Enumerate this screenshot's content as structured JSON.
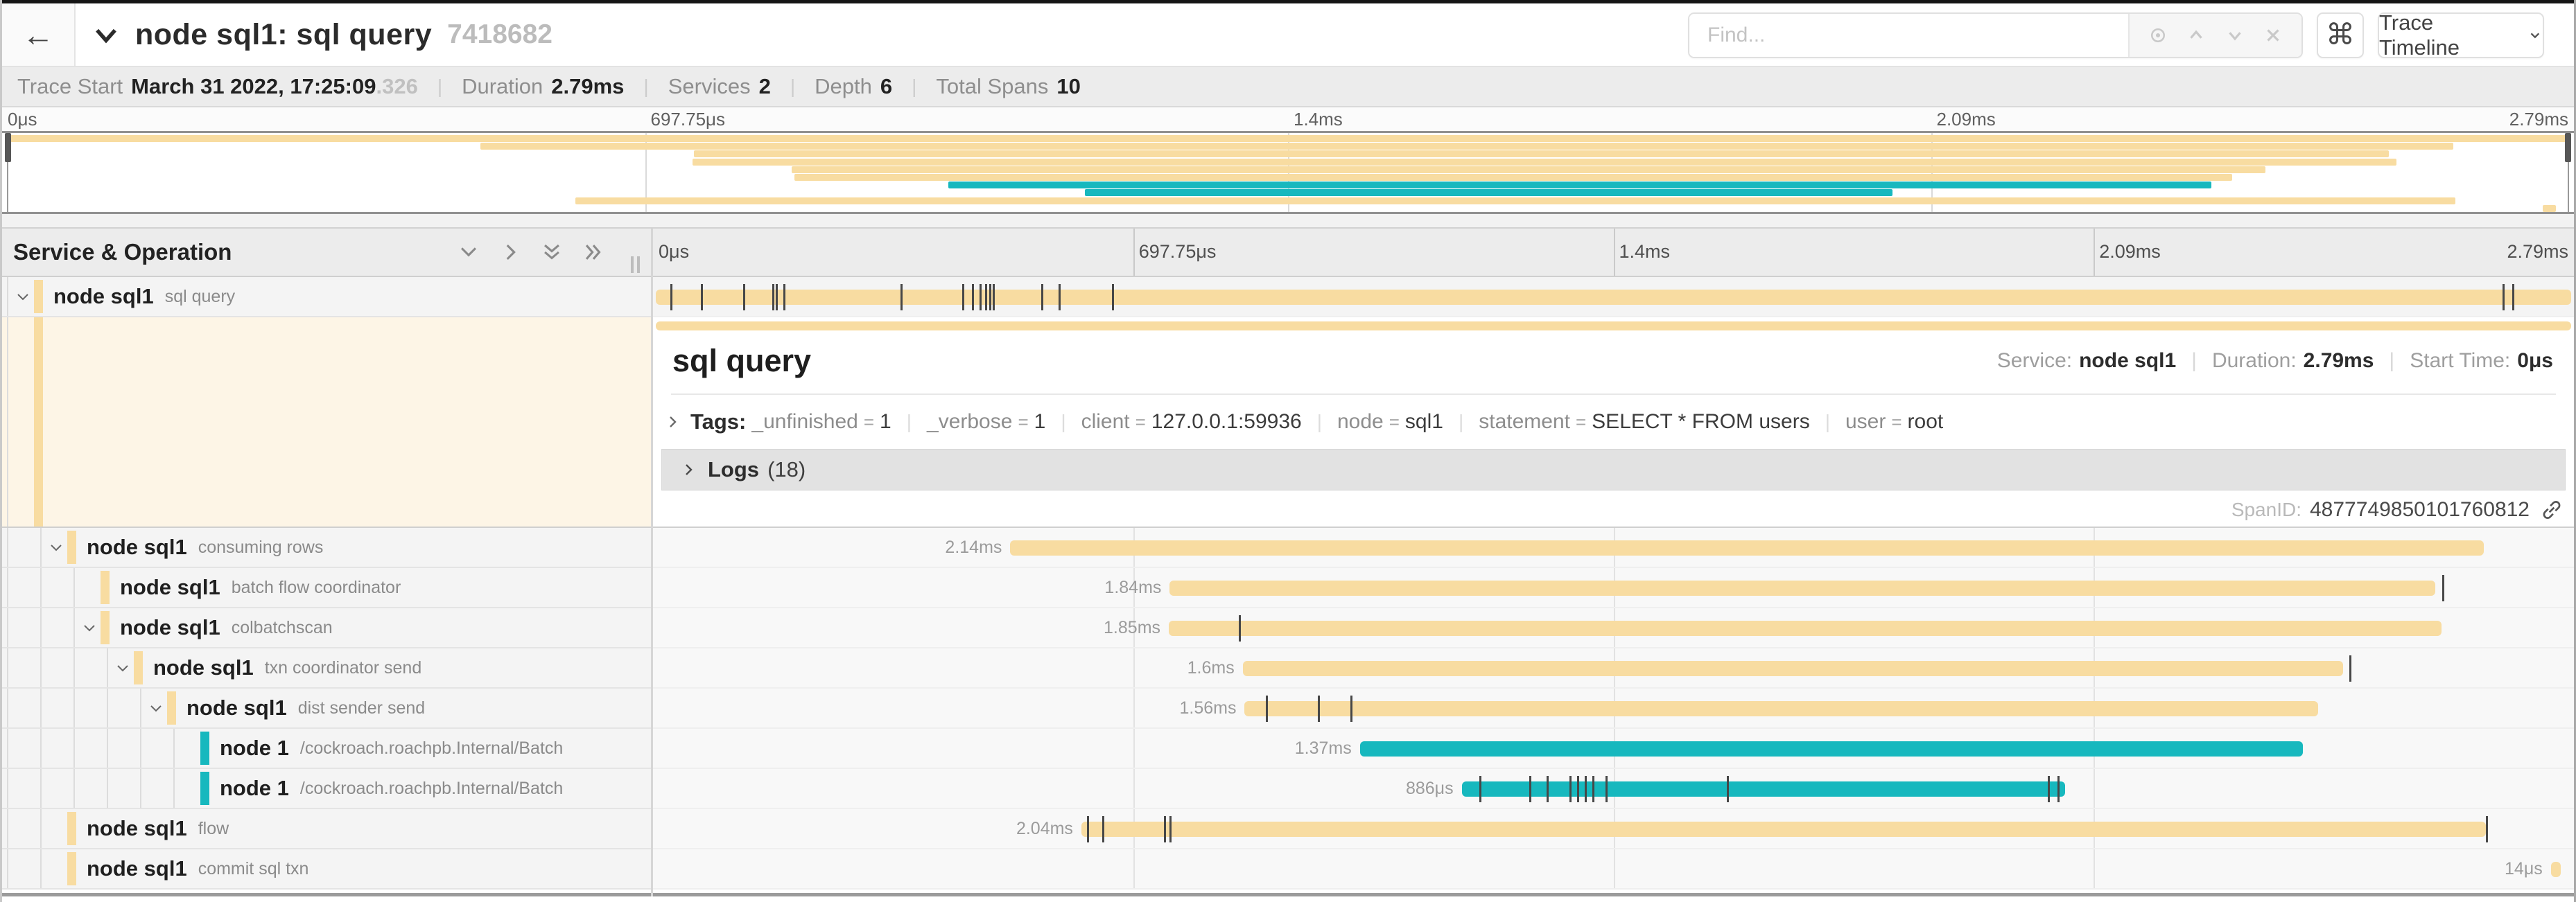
{
  "header": {
    "back_icon": "←",
    "title": "node sql1: sql query",
    "trace_id": "7418682",
    "find_placeholder": "Find...",
    "shortcut_icon": "⌘",
    "view_select_label": "Trace Timeline"
  },
  "trace_info": {
    "items": [
      {
        "label": "Trace Start",
        "value": "March 31 2022, 17:25:09",
        "suffix": ".326"
      },
      {
        "label": "Duration",
        "value": "2.79ms",
        "suffix": ""
      },
      {
        "label": "Services",
        "value": "2",
        "suffix": ""
      },
      {
        "label": "Depth",
        "value": "6",
        "suffix": ""
      },
      {
        "label": "Total Spans",
        "value": "10",
        "suffix": ""
      }
    ]
  },
  "timeline": {
    "left_header": "Service & Operation",
    "ticks": [
      "0μs",
      "697.75μs",
      "1.4ms",
      "2.09ms",
      "2.79ms"
    ]
  },
  "colors": {
    "tan": "#F8DCA1",
    "teal": "#17B8BE"
  },
  "spans": [
    {
      "service": "node sql1",
      "operation": "sql query",
      "depth": 0,
      "color": "tan",
      "start": 0.15,
      "end": 99.85,
      "duration": "2.79ms",
      "show_label": false,
      "expandable": true,
      "selected": true,
      "ticks": [
        0.9,
        2.5,
        4.7,
        6.2,
        6.4,
        6.8,
        12.9,
        16.1,
        16.6,
        17.0,
        17.3,
        17.5,
        17.7,
        20.2,
        21.1,
        23.9,
        96.3,
        96.8
      ]
    },
    {
      "service": "node sql1",
      "operation": "consuming rows",
      "depth": 1,
      "color": "tan",
      "start": 18.6,
      "end": 95.3,
      "duration": "2.14ms",
      "show_label": true,
      "expandable": true,
      "ticks": []
    },
    {
      "service": "node sql1",
      "operation": "batch flow coordinator",
      "depth": 2,
      "color": "tan",
      "start": 26.9,
      "end": 92.8,
      "duration": "1.84ms",
      "show_label": true,
      "expandable": false,
      "ticks": [
        93.15
      ]
    },
    {
      "service": "node sql1",
      "operation": "colbatchscan",
      "depth": 2,
      "color": "tan",
      "start": 26.85,
      "end": 93.1,
      "duration": "1.85ms",
      "show_label": true,
      "expandable": true,
      "ticks": [
        30.5
      ]
    },
    {
      "service": "node sql1",
      "operation": "txn coordinator send",
      "depth": 3,
      "color": "tan",
      "start": 30.7,
      "end": 88.0,
      "duration": "1.6ms",
      "show_label": true,
      "expandable": true,
      "ticks": [
        88.3
      ]
    },
    {
      "service": "node sql1",
      "operation": "dist sender send",
      "depth": 4,
      "color": "tan",
      "start": 30.8,
      "end": 86.7,
      "duration": "1.56ms",
      "show_label": true,
      "expandable": true,
      "ticks": [
        31.9,
        34.6,
        36.3
      ]
    },
    {
      "service": "node 1",
      "operation": "/cockroach.roachpb.Internal/Batch",
      "depth": 5,
      "color": "teal",
      "start": 36.8,
      "end": 85.9,
      "duration": "1.37ms",
      "show_label": true,
      "expandable": false,
      "ticks": []
    },
    {
      "service": "node 1",
      "operation": "/cockroach.roachpb.Internal/Batch",
      "depth": 5,
      "color": "teal",
      "start": 42.1,
      "end": 73.5,
      "duration": "886μs",
      "show_label": true,
      "expandable": false,
      "ticks": [
        43.0,
        45.6,
        46.5,
        47.7,
        48.1,
        48.5,
        48.9,
        49.6,
        55.9,
        72.6,
        73.1
      ]
    },
    {
      "service": "node sql1",
      "operation": "flow",
      "depth": 1,
      "color": "tan",
      "start": 22.3,
      "end": 95.4,
      "duration": "2.04ms",
      "show_label": true,
      "expandable": false,
      "ticks": [
        22.6,
        23.4,
        26.6,
        26.9,
        95.4
      ]
    },
    {
      "service": "node sql1",
      "operation": "commit sql txn",
      "depth": 1,
      "color": "tan",
      "start": 98.8,
      "end": 99.3,
      "duration": "14μs",
      "show_label": true,
      "expandable": false,
      "ticks": []
    }
  ],
  "detail": {
    "title": "sql query",
    "service_label": "Service:",
    "service_value": "node sql1",
    "duration_label": "Duration:",
    "duration_value": "2.79ms",
    "start_label": "Start Time:",
    "start_value": "0μs",
    "tags_label": "Tags:",
    "tags": [
      {
        "key": "_unfinished",
        "value": "1"
      },
      {
        "key": "_verbose",
        "value": "1"
      },
      {
        "key": "client",
        "value": "127.0.0.1:59936"
      },
      {
        "key": "node",
        "value": "sql1"
      },
      {
        "key": "statement",
        "value": "SELECT * FROM users"
      },
      {
        "key": "user",
        "value": "root"
      }
    ],
    "logs_label": "Logs",
    "logs_count": "(18)",
    "spanid_label": "SpanID:",
    "spanid_value": "4877749850101760812"
  }
}
